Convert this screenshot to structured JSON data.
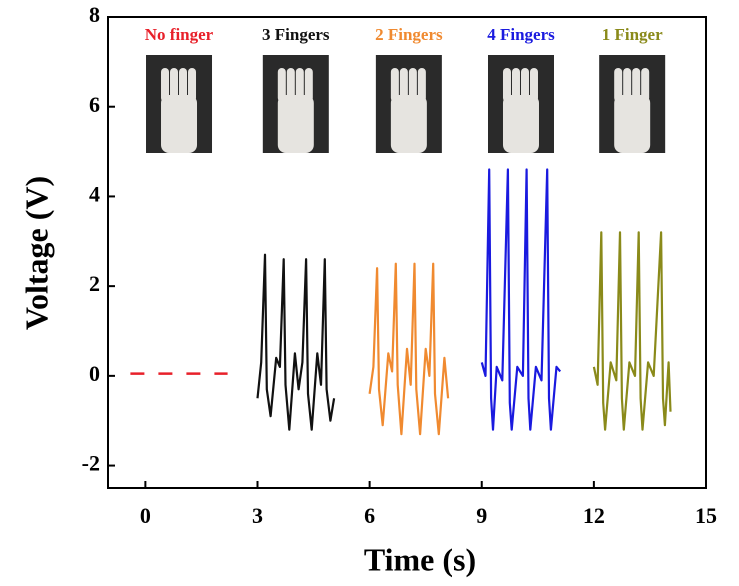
{
  "chart_data": {
    "type": "line",
    "xlabel": "Time (s)",
    "ylabel": "Voltage (V)",
    "xlim": [
      -1,
      15
    ],
    "ylim": [
      -2.5,
      8
    ],
    "xticks": [
      0,
      3,
      6,
      9,
      12,
      15
    ],
    "yticks": [
      -2,
      0,
      2,
      4,
      6,
      8
    ],
    "series": [
      {
        "name": "No finger",
        "color": "#e8202a",
        "dashed": true,
        "x": [
          -0.4,
          2.2
        ],
        "values": [
          0.05,
          0.05
        ]
      },
      {
        "name": "3 Fingers",
        "color": "#111111",
        "x": [
          3.0,
          3.1,
          3.2,
          3.25,
          3.35,
          3.5,
          3.6,
          3.7,
          3.75,
          3.85,
          4.0,
          4.1,
          4.2,
          4.3,
          4.35,
          4.45,
          4.6,
          4.7,
          4.8,
          4.85,
          4.95,
          5.05
        ],
        "values": [
          -0.5,
          0.3,
          2.7,
          -0.3,
          -0.9,
          0.4,
          0.2,
          2.6,
          -0.2,
          -1.2,
          0.5,
          -0.3,
          0.3,
          2.6,
          -0.4,
          -1.2,
          0.5,
          -0.2,
          2.6,
          -0.3,
          -1.0,
          -0.5
        ]
      },
      {
        "name": "2 Fingers",
        "color": "#f08a30",
        "x": [
          6.0,
          6.1,
          6.2,
          6.25,
          6.35,
          6.5,
          6.6,
          6.7,
          6.75,
          6.85,
          7.0,
          7.1,
          7.2,
          7.25,
          7.35,
          7.5,
          7.6,
          7.7,
          7.75,
          7.85,
          8.0,
          8.1
        ],
        "values": [
          -0.4,
          0.2,
          2.4,
          -0.3,
          -1.1,
          0.5,
          0.1,
          2.5,
          -0.2,
          -1.3,
          0.6,
          -0.2,
          2.5,
          -0.3,
          -1.3,
          0.6,
          0.0,
          2.5,
          -0.4,
          -1.3,
          0.4,
          -0.5
        ]
      },
      {
        "name": "4 Fingers",
        "color": "#1a1adf",
        "x": [
          9.0,
          9.1,
          9.2,
          9.25,
          9.3,
          9.4,
          9.55,
          9.7,
          9.75,
          9.8,
          9.95,
          10.1,
          10.2,
          10.25,
          10.3,
          10.45,
          10.6,
          10.75,
          10.8,
          10.85,
          11.0,
          11.1
        ],
        "values": [
          0.3,
          0.0,
          4.6,
          -0.5,
          -1.2,
          0.2,
          -0.1,
          4.6,
          -0.6,
          -1.2,
          0.2,
          0.0,
          4.6,
          -0.5,
          -1.2,
          0.2,
          -0.1,
          4.6,
          -0.5,
          -1.2,
          0.2,
          0.1
        ]
      },
      {
        "name": "1 Finger",
        "color": "#8a8a1a",
        "x": [
          12.0,
          12.1,
          12.2,
          12.25,
          12.3,
          12.45,
          12.6,
          12.7,
          12.75,
          12.8,
          12.95,
          13.1,
          13.2,
          13.25,
          13.3,
          13.45,
          13.6,
          13.8,
          13.85,
          13.9,
          14.0,
          14.05
        ],
        "values": [
          0.2,
          -0.2,
          3.2,
          -0.6,
          -1.2,
          0.3,
          -0.1,
          3.2,
          -0.5,
          -1.2,
          0.3,
          0.0,
          3.2,
          -0.5,
          -1.2,
          0.3,
          0.0,
          3.2,
          -0.5,
          -1.1,
          0.3,
          -0.8
        ]
      }
    ]
  }
}
